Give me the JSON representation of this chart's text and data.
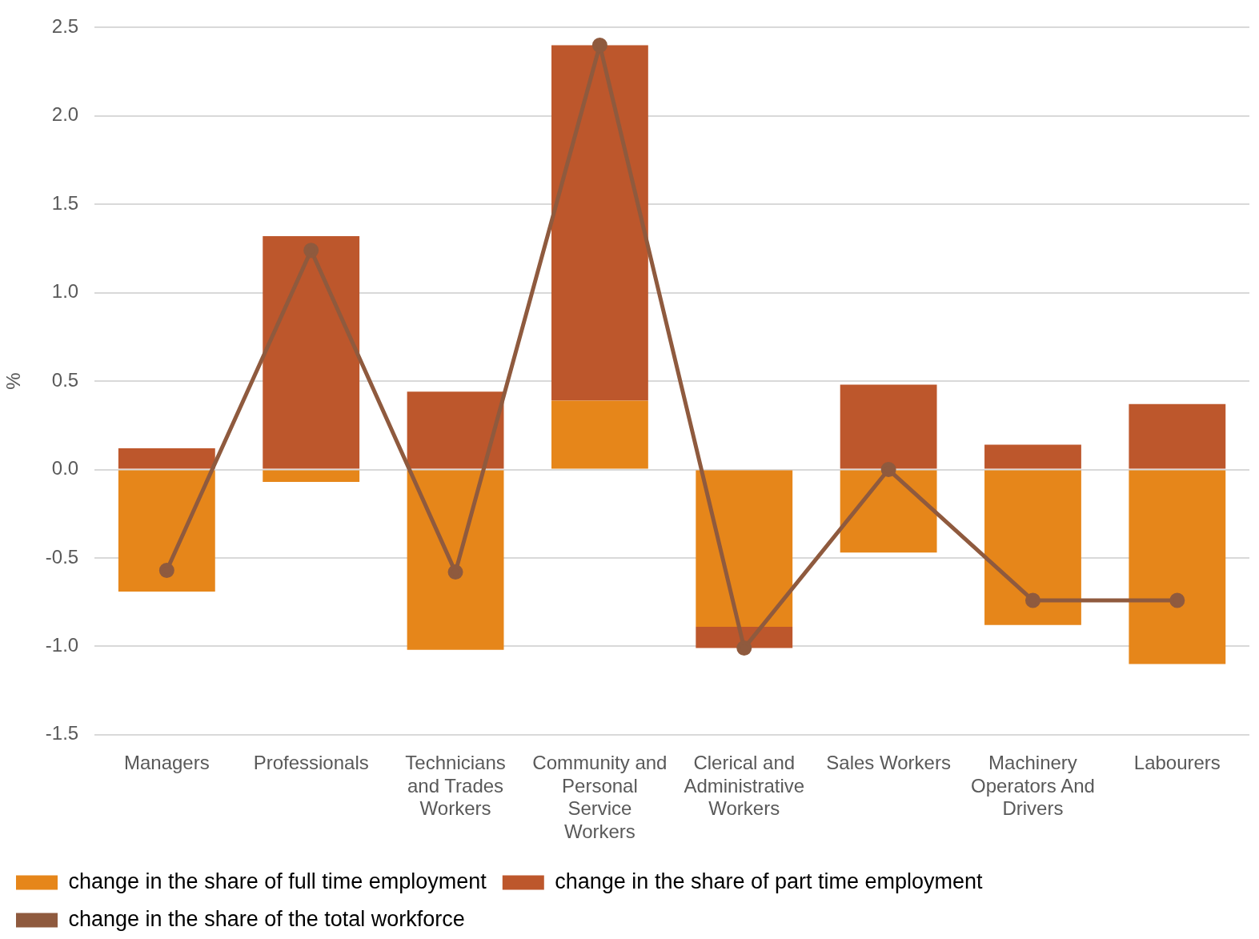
{
  "chart_data": {
    "type": "bar",
    "stacked": true,
    "ylabel": "%",
    "categories": [
      "Managers",
      "Professionals",
      "Technicians and Trades Workers",
      "Community and Personal Service Workers",
      "Clerical and Administrative Workers",
      "Sales Workers",
      "Machinery Operators And Drivers",
      "Labourers"
    ],
    "series": [
      {
        "name": "change in the share of full time employment",
        "color": "#e6861a",
        "values": [
          -0.69,
          -0.07,
          -1.02,
          0.39,
          -0.89,
          -0.47,
          -0.88,
          -1.1
        ]
      },
      {
        "name": "change in the share of part time employment",
        "color": "#bd572c",
        "values": [
          0.12,
          1.32,
          0.44,
          2.01,
          -0.12,
          0.48,
          0.14,
          0.37
        ]
      },
      {
        "name": "change in the share of the total workforce",
        "type": "line",
        "color": "#8f5a3e",
        "values": [
          -0.57,
          1.24,
          -0.58,
          2.4,
          -1.01,
          0.0,
          -0.74,
          -0.74
        ]
      }
    ],
    "ylim": [
      -1.5,
      2.5
    ],
    "yticks": [
      {
        "value": -1.5,
        "label": "-1.5"
      },
      {
        "value": -1,
        "label": "-1.0"
      },
      {
        "value": -0.5,
        "label": "-0.5"
      },
      {
        "value": 0,
        "label": "0.0"
      },
      {
        "value": 0.5,
        "label": "0.5"
      },
      {
        "value": 1,
        "label": "1.0"
      },
      {
        "value": 1.5,
        "label": "1.5"
      },
      {
        "value": 2,
        "label": "2.0"
      },
      {
        "value": 2.5,
        "label": "2.5"
      }
    ],
    "grid": "y",
    "legend": "bottom",
    "marker": "circle",
    "line_style": "solid"
  }
}
